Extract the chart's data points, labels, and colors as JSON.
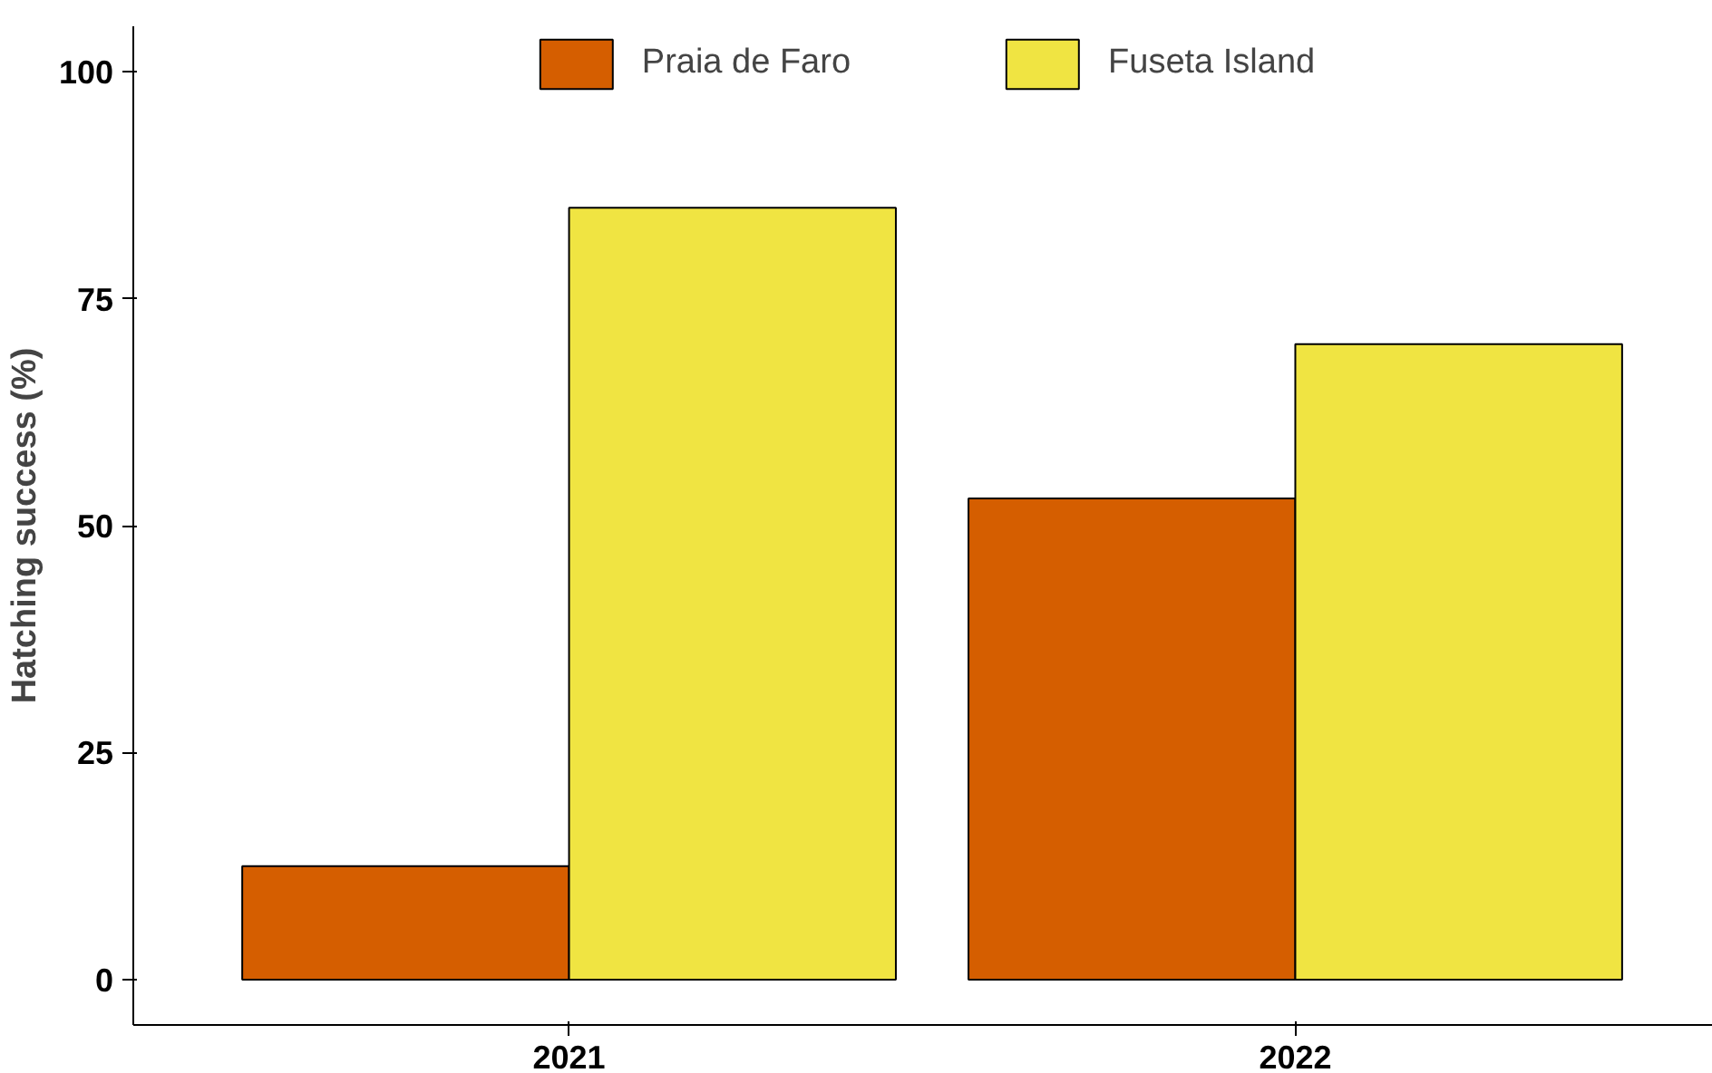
{
  "chart_data": {
    "type": "bar",
    "ylabel": "Hatching success (%)",
    "categories": [
      "2021",
      "2022"
    ],
    "series": [
      {
        "name": "Praia de Faro",
        "color": "#d55e00",
        "values": [
          12.5,
          53
        ]
      },
      {
        "name": "Fuseta Island",
        "color": "#f0e442",
        "values": [
          85,
          70
        ]
      }
    ],
    "ylim": [
      -5,
      105
    ],
    "yticks": [
      0,
      25,
      50,
      75,
      100
    ],
    "grid": false,
    "legend": "top"
  }
}
